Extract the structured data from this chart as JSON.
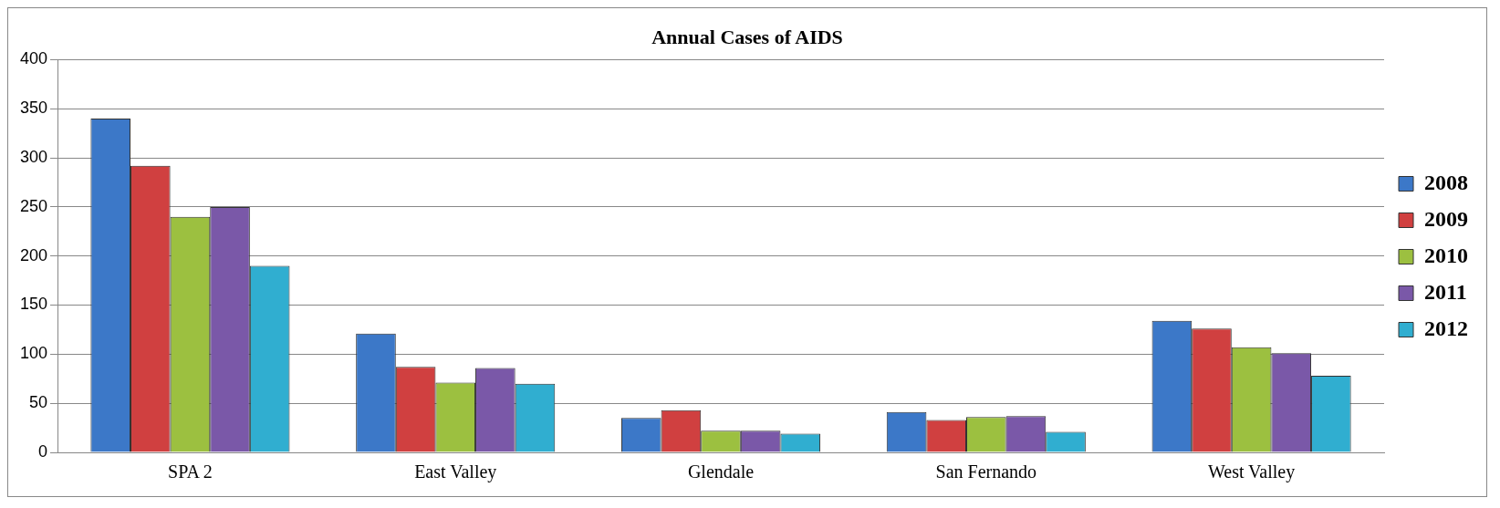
{
  "chart_data": {
    "type": "bar",
    "title": "Annual Cases of AIDS",
    "categories": [
      "SPA 2",
      "East Valley",
      "Glendale",
      "San Fernando",
      "West Valley"
    ],
    "series": [
      {
        "name": "2008",
        "color": "#3c78c8",
        "values": [
          340,
          121,
          35,
          41,
          134
        ]
      },
      {
        "name": "2009",
        "color": "#d04040",
        "values": [
          292,
          87,
          43,
          33,
          126
        ]
      },
      {
        "name": "2010",
        "color": "#9cc040",
        "values": [
          240,
          71,
          22,
          36,
          107
        ]
      },
      {
        "name": "2011",
        "color": "#7a58a8",
        "values": [
          250,
          86,
          22,
          37,
          101
        ]
      },
      {
        "name": "2012",
        "color": "#30aed0",
        "values": [
          190,
          70,
          19,
          21,
          78
        ]
      }
    ],
    "ylim": [
      0,
      400
    ],
    "yticks": [
      0,
      50,
      100,
      150,
      200,
      250,
      300,
      350,
      400
    ],
    "grid": "y",
    "legend": "right"
  }
}
